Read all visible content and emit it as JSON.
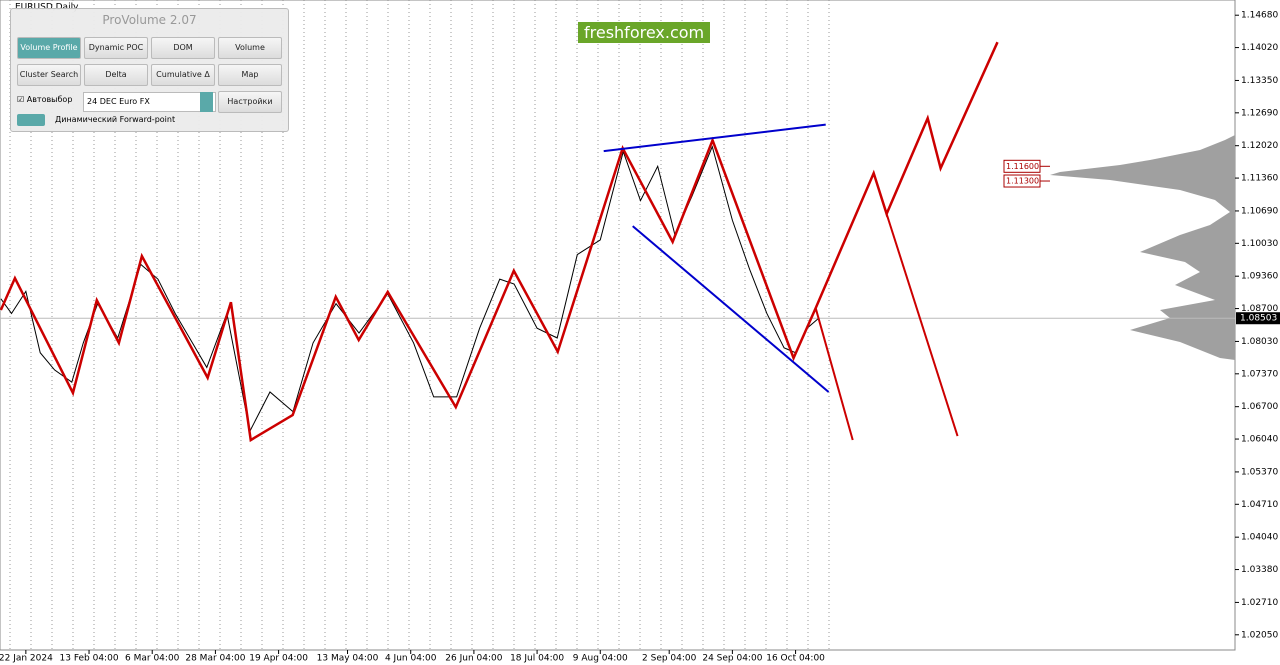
{
  "window": {
    "symbol": "EURUSD,Daily"
  },
  "logo": "freshforex.com",
  "panel": {
    "title": "ProVolume 2.07",
    "buttons": [
      "Volume Profile",
      "Dynamic POC",
      "DOM",
      "Volume",
      "Cluster Search",
      "Delta",
      "Cumulative Δ",
      "Map"
    ],
    "auto_label": "Автовыбор",
    "instrument": "24 DEC Euro FX",
    "settings": "Настройки",
    "forward_label": "Динамический Forward-point"
  },
  "chart_data": {
    "type": "line",
    "xlim": [
      -9,
      421
    ],
    "ylim": [
      1.0174,
      1.1499
    ],
    "xticks": [
      {
        "value": 0,
        "label": "22 Jan 2024"
      },
      {
        "value": 22,
        "label": "13 Feb 04:00"
      },
      {
        "value": 44,
        "label": "6 Mar 04:00"
      },
      {
        "value": 66,
        "label": "28 Mar 04:00"
      },
      {
        "value": 88,
        "label": "19 Apr 04:00"
      },
      {
        "value": 112,
        "label": "13 May 04:00"
      },
      {
        "value": 134,
        "label": "4 Jun 04:00"
      },
      {
        "value": 156,
        "label": "26 Jun 04:00"
      },
      {
        "value": 178,
        "label": "18 Jul 04:00"
      },
      {
        "value": 200,
        "label": "9 Aug 04:00"
      },
      {
        "value": 224,
        "label": "2 Sep 04:00"
      },
      {
        "value": 246,
        "label": "24 Sep 04:00"
      },
      {
        "value": 268,
        "label": "16 Oct 04:00"
      }
    ],
    "yticks": [
      {
        "value": 1.1468,
        "label": "1.14680"
      },
      {
        "value": 1.1402,
        "label": "1.14020"
      },
      {
        "value": 1.1335,
        "label": "1.13350"
      },
      {
        "value": 1.1269,
        "label": "1.12690"
      },
      {
        "value": 1.1202,
        "label": "1.12020"
      },
      {
        "value": 1.1136,
        "label": "1.11360"
      },
      {
        "value": 1.1069,
        "label": "1.10690"
      },
      {
        "value": 1.1003,
        "label": "1.10030"
      },
      {
        "value": 1.0936,
        "label": "1.09360"
      },
      {
        "value": 1.087,
        "label": "1.08700"
      },
      {
        "value": 1.0803,
        "label": "1.08030"
      },
      {
        "value": 1.0737,
        "label": "1.07370"
      },
      {
        "value": 1.067,
        "label": "1.06700"
      },
      {
        "value": 1.0604,
        "label": "1.06040"
      },
      {
        "value": 1.0537,
        "label": "1.05370"
      },
      {
        "value": 1.0471,
        "label": "1.04710"
      },
      {
        "value": 1.0404,
        "label": "1.04040"
      },
      {
        "value": 1.0338,
        "label": "1.03380"
      },
      {
        "value": 1.0271,
        "label": "1.02710"
      },
      {
        "value": 1.0205,
        "label": "1.02050"
      }
    ],
    "current_price": {
      "value": 1.08503,
      "label": "1.08503"
    },
    "levels": [
      {
        "value": 1.116,
        "label": "1.11600"
      },
      {
        "value": 1.113,
        "label": "1.11300"
      }
    ],
    "series": [
      {
        "color": "#000000",
        "width": 1,
        "x": [
          -8.7,
          -5,
          0,
          5,
          10,
          16,
          20,
          25,
          32,
          40,
          46,
          52,
          58,
          63,
          70,
          78,
          85,
          93,
          100,
          108,
          116,
          126,
          135,
          142,
          150,
          158,
          165,
          170,
          178,
          185,
          192,
          200,
          208,
          214,
          220,
          226,
          232,
          239,
          246,
          252,
          258,
          264,
          268,
          272,
          276
        ],
        "values": [
          1.089,
          1.086,
          1.0905,
          1.078,
          1.0745,
          1.072,
          1.08,
          1.088,
          1.081,
          1.096,
          1.093,
          1.086,
          1.08,
          1.075,
          1.086,
          1.062,
          1.07,
          1.066,
          1.08,
          1.088,
          1.082,
          1.09,
          1.08,
          1.069,
          1.069,
          1.083,
          1.093,
          1.092,
          1.083,
          1.081,
          1.098,
          1.101,
          1.119,
          1.109,
          1.116,
          1.102,
          1.11,
          1.12,
          1.105,
          1.095,
          1.086,
          1.079,
          1.078,
          1.083,
          1.085
        ]
      },
      {
        "color": "#cc0000",
        "width": 2.5,
        "x": [
          -8.7,
          -3.8,
          16.4,
          24.7,
          32.4,
          40.4,
          63.3,
          71.4,
          78.3,
          92.9,
          107.9,
          115.9,
          126.0,
          149.7,
          169.9,
          185.2,
          207.8,
          225.2,
          239.1,
          267.3,
          275.0,
          295.2,
          299.7,
          314.0,
          318.5,
          338.3
        ],
        "values": [
          1.0867,
          1.0932,
          1.0698,
          1.0887,
          1.08,
          1.0977,
          1.0729,
          1.0883,
          1.0602,
          1.0653,
          1.0894,
          1.0806,
          1.0904,
          1.0669,
          1.0947,
          1.0782,
          1.1197,
          1.1006,
          1.1213,
          1.0769,
          1.0871,
          1.1146,
          1.1063,
          1.1258,
          1.1156,
          1.1413
        ]
      },
      {
        "color": "#cc0000",
        "width": 2,
        "x": [
          275.0,
          287.9
        ],
        "values": [
          1.0871,
          1.0602
        ]
      },
      {
        "color": "#cc0000",
        "width": 2,
        "x": [
          299.7,
          324.4
        ],
        "values": [
          1.1063,
          1.061
        ]
      },
      {
        "color": "#0000cc",
        "width": 2,
        "x": [
          201.2,
          278.5
        ],
        "values": [
          1.1191,
          1.1245
        ]
      },
      {
        "color": "#0000cc",
        "width": 2,
        "x": [
          211.3,
          279.5
        ],
        "values": [
          1.1038,
          1.07
        ]
      }
    ]
  }
}
